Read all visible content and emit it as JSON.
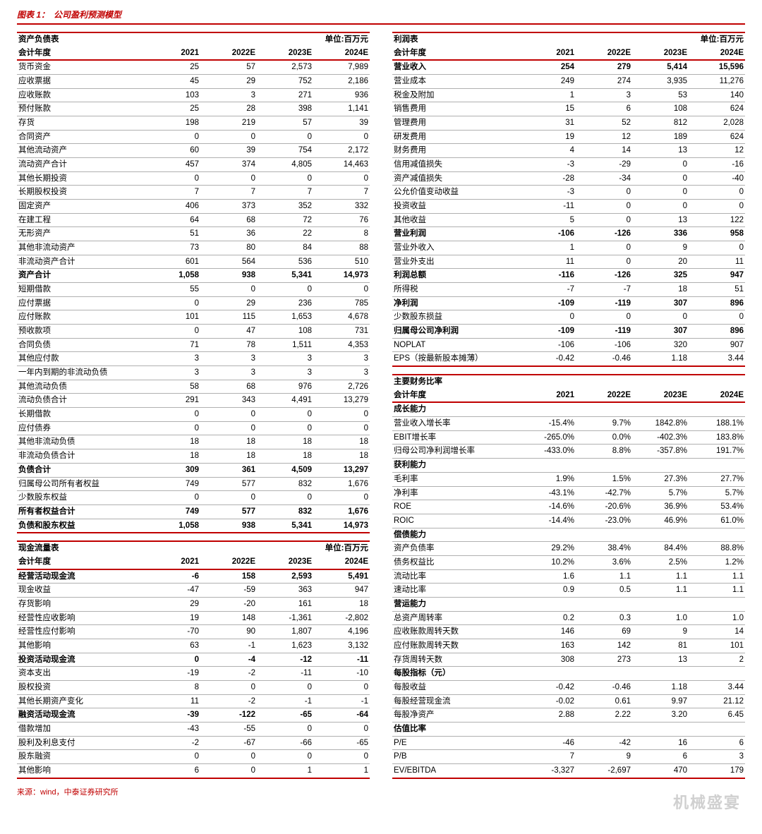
{
  "colors": {
    "accent": "#c00000",
    "text": "#000000",
    "grid": "#b0b0b0",
    "footer": "#c00000",
    "watermark": "#d9d9d9"
  },
  "typography": {
    "base_font": "Microsoft YaHei / SimSun",
    "header_fontsize_pt": 14,
    "body_fontsize_pt": 9,
    "footer_fontsize_pt": 8
  },
  "header": {
    "prefix": "图表 1：",
    "title": "公司盈利预测模型"
  },
  "unit_label": "单位:百万元",
  "year_header": "会计年度",
  "years": [
    "2021",
    "2022E",
    "2023E",
    "2024E"
  ],
  "tables": {
    "balance_sheet": {
      "title": "资产负债表",
      "rows": [
        {
          "k": "货币资金",
          "v": [
            "25",
            "57",
            "2,573",
            "7,989"
          ]
        },
        {
          "k": "应收票据",
          "v": [
            "45",
            "29",
            "752",
            "2,186"
          ]
        },
        {
          "k": "应收账款",
          "v": [
            "103",
            "3",
            "271",
            "936"
          ]
        },
        {
          "k": "预付账款",
          "v": [
            "25",
            "28",
            "398",
            "1,141"
          ]
        },
        {
          "k": "存货",
          "v": [
            "198",
            "219",
            "57",
            "39"
          ]
        },
        {
          "k": "合同资产",
          "v": [
            "0",
            "0",
            "0",
            "0"
          ]
        },
        {
          "k": "其他流动资产",
          "v": [
            "60",
            "39",
            "754",
            "2,172"
          ]
        },
        {
          "k": "流动资产合计",
          "v": [
            "457",
            "374",
            "4,805",
            "14,463"
          ]
        },
        {
          "k": "其他长期投资",
          "v": [
            "0",
            "0",
            "0",
            "0"
          ]
        },
        {
          "k": "长期股权投资",
          "v": [
            "7",
            "7",
            "7",
            "7"
          ]
        },
        {
          "k": "固定资产",
          "v": [
            "406",
            "373",
            "352",
            "332"
          ]
        },
        {
          "k": "在建工程",
          "v": [
            "64",
            "68",
            "72",
            "76"
          ]
        },
        {
          "k": "无形资产",
          "v": [
            "51",
            "36",
            "22",
            "8"
          ]
        },
        {
          "k": "其他非流动资产",
          "v": [
            "73",
            "80",
            "84",
            "88"
          ]
        },
        {
          "k": "非流动资产合计",
          "v": [
            "601",
            "564",
            "536",
            "510"
          ]
        },
        {
          "k": "资产合计",
          "v": [
            "1,058",
            "938",
            "5,341",
            "14,973"
          ],
          "bold": true
        },
        {
          "k": "短期借款",
          "v": [
            "55",
            "0",
            "0",
            "0"
          ]
        },
        {
          "k": "应付票据",
          "v": [
            "0",
            "29",
            "236",
            "785"
          ]
        },
        {
          "k": "应付账款",
          "v": [
            "101",
            "115",
            "1,653",
            "4,678"
          ]
        },
        {
          "k": "预收款项",
          "v": [
            "0",
            "47",
            "108",
            "731"
          ]
        },
        {
          "k": "合同负债",
          "v": [
            "71",
            "78",
            "1,511",
            "4,353"
          ]
        },
        {
          "k": "其他应付款",
          "v": [
            "3",
            "3",
            "3",
            "3"
          ]
        },
        {
          "k": "一年内到期的非流动负债",
          "v": [
            "3",
            "3",
            "3",
            "3"
          ]
        },
        {
          "k": "其他流动负债",
          "v": [
            "58",
            "68",
            "976",
            "2,726"
          ]
        },
        {
          "k": "流动负债合计",
          "v": [
            "291",
            "343",
            "4,491",
            "13,279"
          ]
        },
        {
          "k": "长期借款",
          "v": [
            "0",
            "0",
            "0",
            "0"
          ]
        },
        {
          "k": "应付债券",
          "v": [
            "0",
            "0",
            "0",
            "0"
          ]
        },
        {
          "k": "其他非流动负债",
          "v": [
            "18",
            "18",
            "18",
            "18"
          ]
        },
        {
          "k": "非流动负债合计",
          "v": [
            "18",
            "18",
            "18",
            "18"
          ]
        },
        {
          "k": "负债合计",
          "v": [
            "309",
            "361",
            "4,509",
            "13,297"
          ],
          "bold": true
        },
        {
          "k": "归属母公司所有者权益",
          "v": [
            "749",
            "577",
            "832",
            "1,676"
          ]
        },
        {
          "k": "少数股东权益",
          "v": [
            "0",
            "0",
            "0",
            "0"
          ]
        },
        {
          "k": "所有者权益合计",
          "v": [
            "749",
            "577",
            "832",
            "1,676"
          ],
          "bold": true
        },
        {
          "k": "负债和股东权益",
          "v": [
            "1,058",
            "938",
            "5,341",
            "14,973"
          ],
          "bold": true
        }
      ]
    },
    "cash_flow": {
      "title": "现金流量表",
      "rows": [
        {
          "k": "经营活动现金流",
          "v": [
            "-6",
            "158",
            "2,593",
            "5,491"
          ],
          "bold": true
        },
        {
          "k": "现金收益",
          "v": [
            "-47",
            "-59",
            "363",
            "947"
          ]
        },
        {
          "k": "存货影响",
          "v": [
            "29",
            "-20",
            "161",
            "18"
          ]
        },
        {
          "k": "经营性应收影响",
          "v": [
            "19",
            "148",
            "-1,361",
            "-2,802"
          ]
        },
        {
          "k": "经营性应付影响",
          "v": [
            "-70",
            "90",
            "1,807",
            "4,196"
          ]
        },
        {
          "k": "其他影响",
          "v": [
            "63",
            "-1",
            "1,623",
            "3,132"
          ]
        },
        {
          "k": "投资活动现金流",
          "v": [
            "0",
            "-4",
            "-12",
            "-11"
          ],
          "bold": true
        },
        {
          "k": "资本支出",
          "v": [
            "-19",
            "-2",
            "-11",
            "-10"
          ]
        },
        {
          "k": "股权投资",
          "v": [
            "8",
            "0",
            "0",
            "0"
          ]
        },
        {
          "k": "其他长期资产变化",
          "v": [
            "11",
            "-2",
            "-1",
            "-1"
          ]
        },
        {
          "k": "融资活动现金流",
          "v": [
            "-39",
            "-122",
            "-65",
            "-64"
          ],
          "bold": true
        },
        {
          "k": "借款增加",
          "v": [
            "-43",
            "-55",
            "0",
            "0"
          ]
        },
        {
          "k": "股利及利息支付",
          "v": [
            "-2",
            "-67",
            "-66",
            "-65"
          ]
        },
        {
          "k": "股东融资",
          "v": [
            "0",
            "0",
            "0",
            "0"
          ]
        },
        {
          "k": "其他影响",
          "v": [
            "6",
            "0",
            "1",
            "1"
          ]
        }
      ]
    },
    "income": {
      "title": "利润表",
      "rows": [
        {
          "k": "营业收入",
          "v": [
            "254",
            "279",
            "5,414",
            "15,596"
          ],
          "bold": true
        },
        {
          "k": "营业成本",
          "v": [
            "249",
            "274",
            "3,935",
            "11,276"
          ]
        },
        {
          "k": "税金及附加",
          "v": [
            "1",
            "3",
            "53",
            "140"
          ]
        },
        {
          "k": "销售费用",
          "v": [
            "15",
            "6",
            "108",
            "624"
          ]
        },
        {
          "k": "管理费用",
          "v": [
            "31",
            "52",
            "812",
            "2,028"
          ]
        },
        {
          "k": "研发费用",
          "v": [
            "19",
            "12",
            "189",
            "624"
          ]
        },
        {
          "k": "财务费用",
          "v": [
            "4",
            "14",
            "13",
            "12"
          ]
        },
        {
          "k": "信用减值损失",
          "v": [
            "-3",
            "-29",
            "0",
            "-16"
          ]
        },
        {
          "k": "资产减值损失",
          "v": [
            "-28",
            "-34",
            "0",
            "-40"
          ]
        },
        {
          "k": "公允价值变动收益",
          "v": [
            "-3",
            "0",
            "0",
            "0"
          ]
        },
        {
          "k": "投资收益",
          "v": [
            "-11",
            "0",
            "0",
            "0"
          ]
        },
        {
          "k": "其他收益",
          "v": [
            "5",
            "0",
            "13",
            "122"
          ]
        },
        {
          "k": "营业利润",
          "v": [
            "-106",
            "-126",
            "336",
            "958"
          ],
          "bold": true
        },
        {
          "k": "营业外收入",
          "v": [
            "1",
            "0",
            "9",
            "0"
          ]
        },
        {
          "k": "营业外支出",
          "v": [
            "11",
            "0",
            "20",
            "11"
          ]
        },
        {
          "k": "利润总额",
          "v": [
            "-116",
            "-126",
            "325",
            "947"
          ],
          "bold": true
        },
        {
          "k": "所得税",
          "v": [
            "-7",
            "-7",
            "18",
            "51"
          ]
        },
        {
          "k": "净利润",
          "v": [
            "-109",
            "-119",
            "307",
            "896"
          ],
          "bold": true
        },
        {
          "k": "少数股东损益",
          "v": [
            "0",
            "0",
            "0",
            "0"
          ]
        },
        {
          "k": "归属母公司净利润",
          "v": [
            "-109",
            "-119",
            "307",
            "896"
          ],
          "bold": true
        },
        {
          "k": "NOPLAT",
          "v": [
            "-106",
            "-106",
            "320",
            "907"
          ]
        },
        {
          "k": "EPS（按最新股本摊薄）",
          "v": [
            "-0.42",
            "-0.46",
            "1.18",
            "3.44"
          ]
        }
      ]
    },
    "ratios": {
      "title": "主要财务比率",
      "sections": [
        {
          "heading": "成长能力",
          "rows": [
            {
              "k": "营业收入增长率",
              "v": [
                "-15.4%",
                "9.7%",
                "1842.8%",
                "188.1%"
              ]
            },
            {
              "k": "EBIT增长率",
              "v": [
                "-265.0%",
                "0.0%",
                "-402.3%",
                "183.8%"
              ]
            },
            {
              "k": "归母公司净利润增长率",
              "v": [
                "-433.0%",
                "8.8%",
                "-357.8%",
                "191.7%"
              ]
            }
          ]
        },
        {
          "heading": "获利能力",
          "rows": [
            {
              "k": "毛利率",
              "v": [
                "1.9%",
                "1.5%",
                "27.3%",
                "27.7%"
              ]
            },
            {
              "k": "净利率",
              "v": [
                "-43.1%",
                "-42.7%",
                "5.7%",
                "5.7%"
              ]
            },
            {
              "k": "ROE",
              "v": [
                "-14.6%",
                "-20.6%",
                "36.9%",
                "53.4%"
              ]
            },
            {
              "k": "ROIC",
              "v": [
                "-14.4%",
                "-23.0%",
                "46.9%",
                "61.0%"
              ]
            }
          ]
        },
        {
          "heading": "偿债能力",
          "rows": [
            {
              "k": "资产负债率",
              "v": [
                "29.2%",
                "38.4%",
                "84.4%",
                "88.8%"
              ]
            },
            {
              "k": "债务权益比",
              "v": [
                "10.2%",
                "3.6%",
                "2.5%",
                "1.2%"
              ]
            },
            {
              "k": "流动比率",
              "v": [
                "1.6",
                "1.1",
                "1.1",
                "1.1"
              ]
            },
            {
              "k": "速动比率",
              "v": [
                "0.9",
                "0.5",
                "1.1",
                "1.1"
              ]
            }
          ]
        },
        {
          "heading": "营运能力",
          "rows": [
            {
              "k": "总资产周转率",
              "v": [
                "0.2",
                "0.3",
                "1.0",
                "1.0"
              ]
            },
            {
              "k": "应收账款周转天数",
              "v": [
                "146",
                "69",
                "9",
                "14"
              ]
            },
            {
              "k": "应付账款周转天数",
              "v": [
                "163",
                "142",
                "81",
                "101"
              ]
            },
            {
              "k": "存货周转天数",
              "v": [
                "308",
                "273",
                "13",
                "2"
              ]
            }
          ]
        },
        {
          "heading": "每股指标（元）",
          "rows": [
            {
              "k": "每股收益",
              "v": [
                "-0.42",
                "-0.46",
                "1.18",
                "3.44"
              ]
            },
            {
              "k": "每股经营现金流",
              "v": [
                "-0.02",
                "0.61",
                "9.97",
                "21.12"
              ]
            },
            {
              "k": "每股净资产",
              "v": [
                "2.88",
                "2.22",
                "3.20",
                "6.45"
              ]
            }
          ]
        },
        {
          "heading": "估值比率",
          "rows": [
            {
              "k": "P/E",
              "v": [
                "-46",
                "-42",
                "16",
                "6"
              ]
            },
            {
              "k": "P/B",
              "v": [
                "7",
                "9",
                "6",
                "3"
              ]
            },
            {
              "k": "EV/EBITDA",
              "v": [
                "-3,327",
                "-2,697",
                "470",
                "179"
              ]
            }
          ]
        }
      ]
    }
  },
  "footer": "来源：wind，中泰证券研究所",
  "watermark": "机械盛宴"
}
